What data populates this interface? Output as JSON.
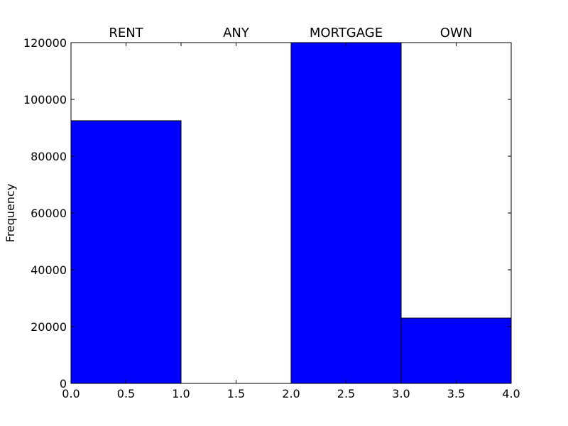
{
  "chart_data": {
    "type": "bar",
    "categories": [
      "RENT",
      "ANY",
      "MORTGAGE",
      "OWN"
    ],
    "bins": [
      [
        0.0,
        1.0
      ],
      [
        1.0,
        2.0
      ],
      [
        2.0,
        3.0
      ],
      [
        3.0,
        4.0
      ]
    ],
    "values": [
      92500,
      0,
      120000,
      23000
    ],
    "title": "",
    "xlabel": "",
    "ylabel": "Frequency",
    "xlim": [
      0.0,
      4.0
    ],
    "ylim": [
      0,
      120000
    ],
    "x_ticks": [
      "0.0",
      "0.5",
      "1.0",
      "1.5",
      "2.0",
      "2.5",
      "3.0",
      "3.5",
      "4.0"
    ],
    "y_ticks": [
      "0",
      "20000",
      "40000",
      "60000",
      "80000",
      "100000",
      "120000"
    ],
    "grid": false,
    "legend": "none",
    "bar_color": "#0000ff",
    "edge_color": "#000000"
  }
}
